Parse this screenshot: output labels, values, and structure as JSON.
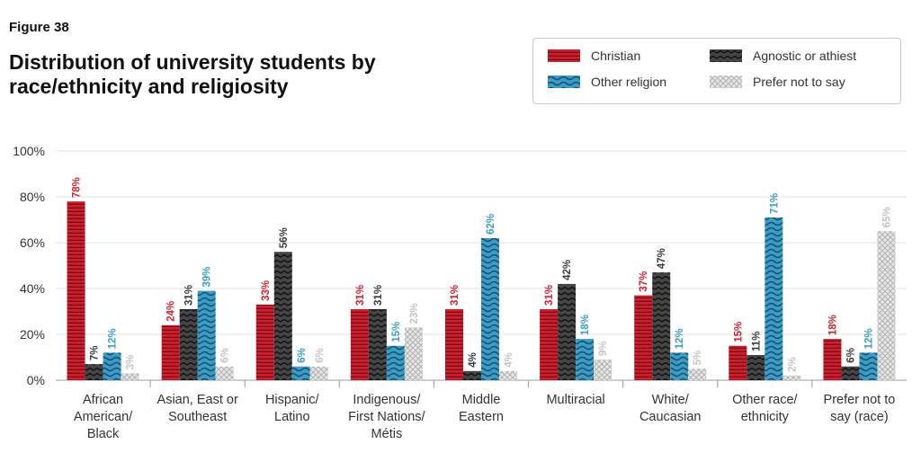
{
  "figure_label": "Figure 38",
  "chart_data": {
    "type": "bar",
    "title": "Distribution of university students by race/ethnicity and religiosity",
    "xlabel": "",
    "ylabel": "",
    "ylim": [
      0,
      100
    ],
    "yticks": [
      "0%",
      "20%",
      "40%",
      "60%",
      "80%",
      "100%"
    ],
    "grid": true,
    "legend_position": "top-right",
    "categories": [
      [
        "African",
        "American/",
        "Black"
      ],
      [
        "Asian, East or",
        "Southeast"
      ],
      [
        "Hispanic/",
        "Latino"
      ],
      [
        "Indigenous/",
        "First Nations/",
        "Métis"
      ],
      [
        "Middle",
        "Eastern"
      ],
      [
        "Multiracial"
      ],
      [
        "White/",
        "Caucasian"
      ],
      [
        "Other race/",
        "ethnicity"
      ],
      [
        "Prefer not to",
        "say (race)"
      ]
    ],
    "series": [
      {
        "name": "Christian",
        "color": "#d0202f",
        "pattern": "horizontal-lines",
        "values": [
          78,
          24,
          33,
          31,
          31,
          31,
          37,
          15,
          18
        ],
        "labels": [
          "78%",
          "24%",
          "33%",
          "31%",
          "31%",
          "31%",
          "37%",
          "15%",
          "18%"
        ]
      },
      {
        "name": "Agnostic or athiest",
        "color": "#3a3a3a",
        "pattern": "zigzag",
        "values": [
          7,
          31,
          56,
          31,
          4,
          42,
          47,
          11,
          6
        ],
        "labels": [
          "7%",
          "31%",
          "56%",
          "31%",
          "4%",
          "42%",
          "47%",
          "11%",
          "6%"
        ]
      },
      {
        "name": "Other religion",
        "color": "#3b9cc6",
        "pattern": "waves",
        "values": [
          12,
          39,
          6,
          15,
          62,
          18,
          12,
          71,
          12
        ],
        "labels": [
          "12%",
          "39%",
          "6%",
          "15%",
          "62%",
          "18%",
          "12%",
          "71%",
          "12%"
        ]
      },
      {
        "name": "Prefer not to say",
        "color": "#cccccc",
        "pattern": "crosshatch",
        "values": [
          3,
          6,
          6,
          23,
          4,
          9,
          5,
          2,
          65
        ],
        "labels": [
          "3%",
          "6%",
          "6%",
          "23%",
          "4%",
          "9%",
          "5%",
          "2%",
          "65%"
        ]
      }
    ]
  }
}
